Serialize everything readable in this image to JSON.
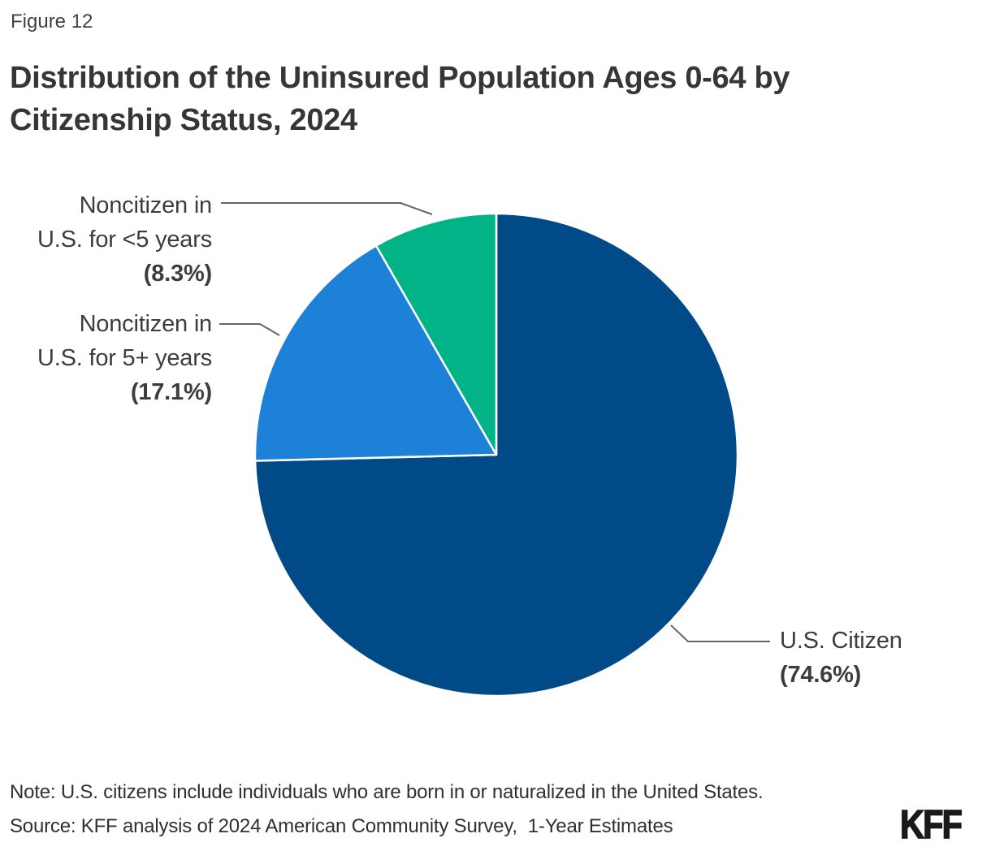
{
  "figure_label": "Figure 12",
  "title": "Distribution of the Uninsured Population Ages 0-64 by Citizenship Status, 2024",
  "chart_data": {
    "type": "pie",
    "title": "Distribution of the Uninsured Population Ages 0-64 by Citizenship Status, 2024",
    "start_angle_deg": -90,
    "direction": "clockwise",
    "slices": [
      {
        "label": "U.S. Citizen",
        "value": 74.6,
        "display": "(74.6%)",
        "color": "#004A87"
      },
      {
        "label": "Noncitizen in U.S. for 5+ years",
        "value": 17.1,
        "display": "(17.1%)",
        "color": "#1E81D8"
      },
      {
        "label": "Noncitizen in U.S. for <5 years",
        "value": 8.3,
        "display": "(8.3%)",
        "color": "#03B388"
      }
    ],
    "slice_border_color": "#ffffff",
    "leader_line_color": "#666666"
  },
  "labels": {
    "noncitizen_less5": {
      "line1": "Noncitizen in",
      "line2": "U.S. for <5 years",
      "pct": "(8.3%)"
    },
    "noncitizen_5plus": {
      "line1": "Noncitizen in",
      "line2": "U.S. for 5+ years",
      "pct": "(17.1%)"
    },
    "citizen": {
      "line1": "U.S. Citizen",
      "pct": "(74.6%)"
    }
  },
  "note": "Note: U.S. citizens include individuals who are born in or naturalized in the United States.",
  "source": "Source: KFF analysis of 2024 American Community Survey,  1-Year Estimates",
  "logo_text": "KFF"
}
